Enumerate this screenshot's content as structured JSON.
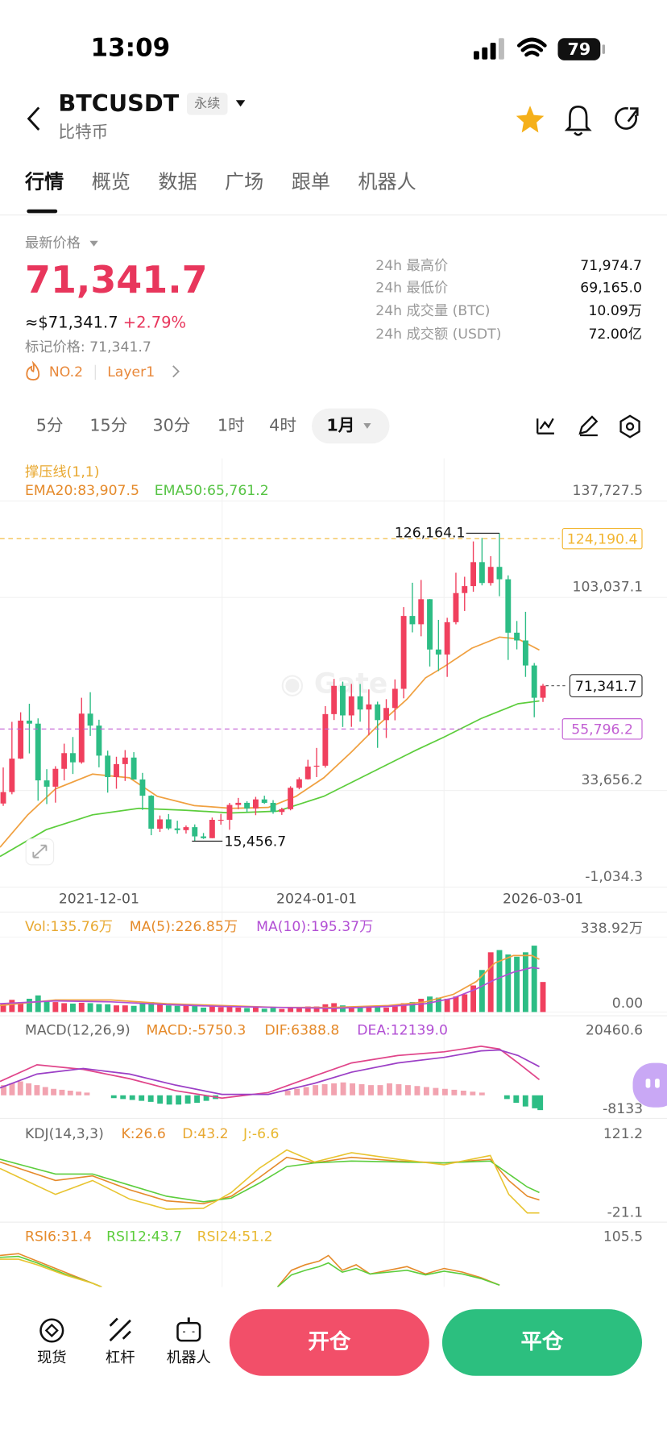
{
  "status_bar": {
    "time": "13:09",
    "battery": "79"
  },
  "header": {
    "symbol": "BTCUSDT",
    "badge": "永续",
    "name": "比特币"
  },
  "tabs": [
    "行情",
    "概览",
    "数据",
    "广场",
    "跟单",
    "机器人"
  ],
  "price": {
    "label": "最新价格",
    "last": "71,341.7",
    "usd": "≈$71,341.7",
    "change": "+2.79%",
    "mark": "标记价格: 71,341.7",
    "rank": "NO.2",
    "tag": "Layer1"
  },
  "stats": [
    {
      "label": "24h 最高价",
      "value": "71,974.7"
    },
    {
      "label": "24h 最低价",
      "value": "69,165.0"
    },
    {
      "label": "24h 成交量 (BTC)",
      "value": "10.09万"
    },
    {
      "label": "24h 成交额 (USDT)",
      "value": "72.00亿"
    }
  ],
  "intervals": [
    "5分",
    "15分",
    "30分",
    "1时",
    "4时",
    "1月"
  ],
  "chart_data": {
    "type": "candlestick",
    "legend": [
      "撑压线(1,1)",
      "EMA20:83,907.5",
      "EMA50:65,761.2"
    ],
    "categories": [
      null,
      null,
      null,
      null,
      null,
      null,
      null,
      null,
      null,
      null,
      null,
      "2021-12-01",
      null,
      null,
      null,
      null,
      null,
      null,
      null,
      null,
      null,
      null,
      null,
      null,
      null,
      null,
      null,
      null,
      null,
      null,
      null,
      null,
      null,
      null,
      null,
      null,
      "2024-01-01",
      null,
      null,
      null,
      null,
      null,
      null,
      null,
      null,
      null,
      null,
      null,
      null,
      null,
      null,
      null,
      null,
      null,
      null,
      null,
      null,
      null,
      null,
      null,
      null,
      null,
      "2026-03-01"
    ],
    "open": [
      28990,
      33110,
      45140,
      58790,
      57700,
      37300,
      35040,
      41460,
      47100,
      43800,
      61300,
      57000,
      46200,
      38480,
      43160,
      45510,
      37630,
      31790,
      19940,
      23290,
      20050,
      19420,
      20490,
      17170,
      16540,
      23130,
      23140,
      28480,
      29240,
      27210,
      30470,
      29230,
      25940,
      26960,
      34640,
      37720,
      42280,
      42580,
      61130,
      71290,
      60660,
      67530,
      62770,
      64620,
      58970,
      63330,
      70220,
      96410,
      93430,
      102430,
      84350,
      82550,
      94170,
      104640,
      107140,
      115760,
      108250,
      114050,
      109600,
      90400,
      87600,
      78600,
      67000
    ],
    "high": [
      41950,
      58350,
      61780,
      64850,
      59590,
      41330,
      42400,
      50500,
      52900,
      67000,
      69000,
      59100,
      47990,
      45800,
      48200,
      47450,
      40000,
      31990,
      24670,
      25200,
      22800,
      21090,
      21480,
      18390,
      23950,
      25250,
      29190,
      31000,
      29820,
      31390,
      31800,
      30200,
      27480,
      35200,
      38400,
      44700,
      48970,
      64000,
      73780,
      72800,
      71980,
      71950,
      70000,
      65600,
      66500,
      73600,
      99600,
      108350,
      109350,
      102500,
      95000,
      95750,
      111950,
      110500,
      123200,
      124470,
      117900,
      126164.1,
      111000,
      94600,
      97900,
      79500,
      72000
    ],
    "low": [
      28130,
      32300,
      45000,
      47000,
      30000,
      28800,
      29300,
      37300,
      39600,
      43300,
      53300,
      42000,
      32900,
      34300,
      37100,
      37600,
      26700,
      17600,
      18780,
      19520,
      18150,
      18190,
      15456.7,
      16260,
      16500,
      21400,
      19550,
      26940,
      25800,
      24800,
      28860,
      25300,
      24900,
      26540,
      34100,
      37600,
      38500,
      41880,
      59000,
      56500,
      56550,
      58400,
      53500,
      49000,
      52550,
      58900,
      66800,
      90500,
      89100,
      78250,
      76600,
      74500,
      93400,
      98200,
      105100,
      107400,
      107300,
      103500,
      80600,
      84400,
      74500,
      60000,
      65500
    ],
    "close": [
      33110,
      45140,
      58790,
      57700,
      37300,
      35040,
      41460,
      47100,
      43800,
      61300,
      57000,
      46200,
      38480,
      43160,
      45510,
      37630,
      31790,
      19940,
      23290,
      20050,
      19420,
      20490,
      17170,
      16540,
      23130,
      23140,
      28480,
      29240,
      27210,
      30470,
      29230,
      25940,
      26960,
      34640,
      37720,
      42280,
      42580,
      61130,
      71290,
      60660,
      67530,
      62770,
      64620,
      58970,
      63330,
      70220,
      96410,
      93430,
      102430,
      84350,
      82550,
      94170,
      104640,
      107140,
      115760,
      108250,
      114050,
      109600,
      90400,
      87600,
      78600,
      67000,
      71341.7
    ],
    "up_color": "#f0405e",
    "down_color": "#2dbd85",
    "ylim": [
      -1034.3,
      137727.5
    ],
    "yticks": [
      {
        "value": 137727.5,
        "label": "137,727.5"
      },
      {
        "value": 103037.1,
        "label": "103,037.1"
      },
      {
        "value": 33656.2,
        "label": "33,656.2"
      },
      {
        "value": -1034.3,
        "label": "-1,034.3"
      }
    ],
    "grid": true,
    "price_lines": [
      {
        "value": 124190.4,
        "label": "124,190.4",
        "color": "#f2b530"
      },
      {
        "value": 55796.2,
        "label": "55,796.2",
        "color": "#c25fd3"
      }
    ],
    "last_price": {
      "value": 71341.7,
      "label": "71,341.7"
    },
    "annotations": [
      {
        "value": 126164.1,
        "label": "126,164.1"
      },
      {
        "value": 15456.7,
        "label": "15,456.7"
      }
    ],
    "volume": {
      "labels": [
        "Vol:135.76万",
        "MA(5):226.85万",
        "MA(10):195.37万"
      ],
      "values": [
        40,
        55,
        45,
        60,
        75,
        50,
        45,
        40,
        38,
        42,
        40,
        36,
        35,
        30,
        30,
        28,
        40,
        45,
        35,
        30,
        28,
        30,
        35,
        20,
        25,
        22,
        30,
        20,
        18,
        22,
        15,
        18,
        14,
        20,
        22,
        25,
        25,
        35,
        40,
        30,
        22,
        20,
        22,
        25,
        20,
        25,
        40,
        45,
        60,
        70,
        65,
        60,
        70,
        80,
        120,
        190,
        270,
        280,
        260,
        250,
        270,
        300,
        135.76
      ],
      "ylim": [
        0,
        338.92
      ],
      "yticks": [
        {
          "value": 338.92,
          "label": "338.92万"
        },
        {
          "value": 0,
          "label": "0.00"
        }
      ]
    }
  },
  "indicators": {
    "macd": {
      "labels": [
        "MACD(12,26,9)",
        "MACD:-5750.3",
        "DIF:6388.8",
        "DEA:12139.0"
      ],
      "ticks": [
        "20460.6",
        "-8133"
      ]
    },
    "kdj": {
      "labels": [
        "KDJ(14,3,3)",
        "K:26.6",
        "D:43.2",
        "J:-6.6"
      ],
      "ticks": [
        "121.2",
        "-21.1"
      ]
    },
    "rsi": {
      "labels": [
        "RSI6:31.4",
        "RSI12:43.7",
        "RSI24:51.2"
      ],
      "ticks": [
        "105.5"
      ]
    }
  },
  "bottom_bar": {
    "items": [
      "现货",
      "杠杆",
      "机器人"
    ],
    "buttons": [
      "开仓",
      "平仓"
    ]
  }
}
